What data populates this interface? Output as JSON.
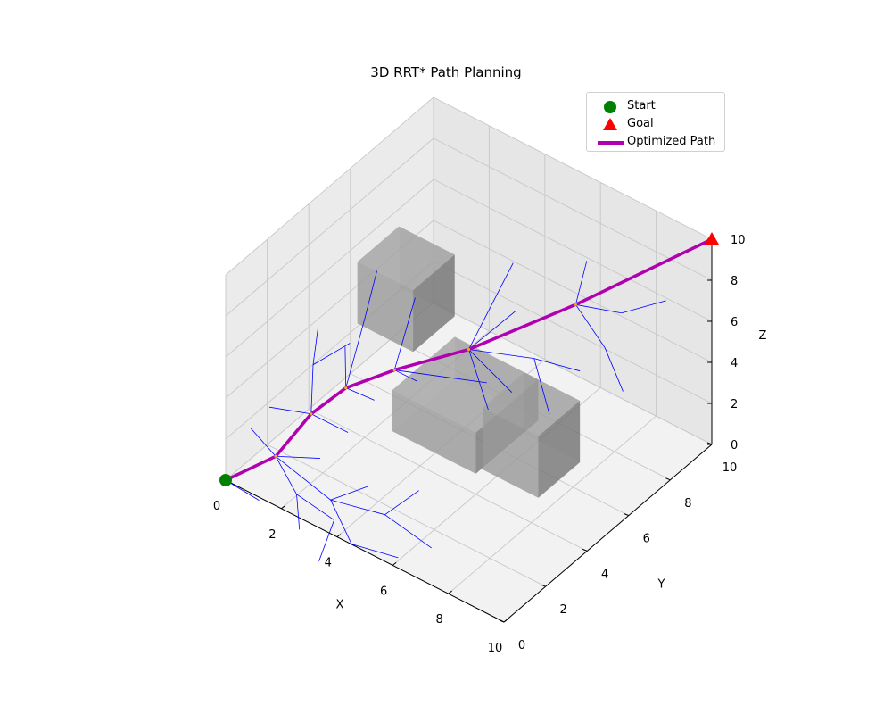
{
  "chart_data": {
    "type": "3d-path",
    "title": "3D RRT* Path Planning",
    "xlabel": "X",
    "ylabel": "Y",
    "zlabel": "Z",
    "xlim": [
      0,
      10
    ],
    "ylim": [
      0,
      10
    ],
    "zlim": [
      0,
      10
    ],
    "xticks": [
      "0",
      "2",
      "4",
      "6",
      "8",
      "10"
    ],
    "yticks": [
      "0",
      "2",
      "4",
      "6",
      "8",
      "10"
    ],
    "zticks": [
      "0",
      "2",
      "4",
      "6",
      "8",
      "10"
    ],
    "grid": true,
    "legend_placement": "top-right",
    "colors": {
      "start": "#008000",
      "goal": "#ff0000",
      "path": "#b000b0",
      "tree": "#0000ff",
      "obstacle": "#808080"
    },
    "legend": [
      {
        "label": "Start",
        "marker": "circle"
      },
      {
        "label": "Goal",
        "marker": "triangle"
      },
      {
        "label": "Optimized Path",
        "marker": "line"
      }
    ],
    "start": [
      0,
      0,
      0
    ],
    "goal": [
      10,
      10,
      10
    ],
    "path": [
      [
        0,
        0,
        0
      ],
      [
        1.2,
        0.8,
        1.3
      ],
      [
        1.8,
        1.7,
        3.0
      ],
      [
        2.6,
        2.3,
        4.3
      ],
      [
        3.6,
        3.3,
        5.0
      ],
      [
        5.0,
        5.0,
        5.5
      ],
      [
        7.2,
        7.2,
        7.3
      ],
      [
        10,
        10,
        10
      ]
    ],
    "obstacles": [
      {
        "min": [
          1,
          5,
          4
        ],
        "max": [
          3,
          7,
          7
        ]
      },
      {
        "min": [
          3,
          4,
          1
        ],
        "max": [
          6,
          7,
          3
        ]
      },
      {
        "min": [
          5.5,
          5,
          0
        ],
        "max": [
          7.5,
          7,
          3
        ]
      }
    ],
    "tree_edges": [
      [
        [
          0,
          0,
          0
        ],
        [
          1.2,
          0.8,
          1.3
        ]
      ],
      [
        [
          0,
          0,
          0
        ],
        [
          1.5,
          -0.4,
          0.4
        ]
      ],
      [
        [
          1.2,
          0.8,
          1.3
        ],
        [
          0.6,
          0.4,
          2.6
        ]
      ],
      [
        [
          1.2,
          0.8,
          1.3
        ],
        [
          2.4,
          0.2,
          0.8
        ]
      ],
      [
        [
          1.2,
          0.8,
          1.3
        ],
        [
          2.2,
          1.6,
          1.2
        ]
      ],
      [
        [
          1.2,
          0.8,
          1.3
        ],
        [
          3.1,
          0.9,
          0.4
        ]
      ],
      [
        [
          1.2,
          0.8,
          1.3
        ],
        [
          1.8,
          1.7,
          3.0
        ]
      ],
      [
        [
          2.4,
          0.2,
          0.8
        ],
        [
          3.6,
          0.4,
          0.2
        ]
      ],
      [
        [
          2.4,
          0.2,
          0.8
        ],
        [
          2.8,
          -0.2,
          -0.3
        ]
      ],
      [
        [
          3.1,
          0.9,
          0.4
        ],
        [
          4.3,
          0.3,
          -0.4
        ]
      ],
      [
        [
          3.1,
          0.9,
          0.4
        ],
        [
          4.6,
          1.5,
          0.2
        ]
      ],
      [
        [
          3.1,
          0.9,
          0.4
        ],
        [
          3.9,
          1.6,
          1.0
        ]
      ],
      [
        [
          4.3,
          0.3,
          -0.4
        ],
        [
          5.6,
          0.8,
          -0.6
        ]
      ],
      [
        [
          4.6,
          1.5,
          0.2
        ],
        [
          6.2,
          1.6,
          -0.4
        ]
      ],
      [
        [
          4.6,
          1.5,
          0.2
        ],
        [
          5.0,
          2.6,
          0.7
        ]
      ],
      [
        [
          3.6,
          0.4,
          0.2
        ],
        [
          3.8,
          -0.6,
          -0.8
        ]
      ],
      [
        [
          1.8,
          1.7,
          3.0
        ],
        [
          1.2,
          2.6,
          4.2
        ]
      ],
      [
        [
          1.8,
          1.7,
          3.0
        ],
        [
          0.9,
          0.9,
          3.4
        ]
      ],
      [
        [
          1.8,
          1.7,
          3.0
        ],
        [
          2.6,
          2.3,
          4.3
        ]
      ],
      [
        [
          1.8,
          1.7,
          3.0
        ],
        [
          2.9,
          2.0,
          2.6
        ]
      ],
      [
        [
          1.2,
          2.6,
          4.2
        ],
        [
          1.0,
          3.1,
          5.4
        ]
      ],
      [
        [
          1.2,
          2.6,
          4.2
        ],
        [
          2.0,
          3.3,
          5.2
        ]
      ],
      [
        [
          2.6,
          2.3,
          4.3
        ],
        [
          2.3,
          3.6,
          6.3
        ]
      ],
      [
        [
          2.6,
          2.3,
          4.3
        ],
        [
          2.2,
          2.8,
          5.6
        ]
      ],
      [
        [
          2.6,
          2.3,
          4.3
        ],
        [
          3.6,
          3.3,
          5.0
        ]
      ],
      [
        [
          2.6,
          2.3,
          4.3
        ],
        [
          3.4,
          2.6,
          4.0
        ]
      ],
      [
        [
          2.3,
          3.6,
          6.3
        ],
        [
          2.0,
          4.6,
          7.6
        ]
      ],
      [
        [
          3.6,
          3.3,
          5.0
        ],
        [
          3.3,
          4.7,
          7.1
        ]
      ],
      [
        [
          3.6,
          3.3,
          5.0
        ],
        [
          4.2,
          3.6,
          4.6
        ]
      ],
      [
        [
          3.6,
          3.3,
          5.0
        ],
        [
          5.0,
          5.0,
          5.5
        ]
      ],
      [
        [
          3.6,
          3.3,
          5.0
        ],
        [
          5.8,
          4.8,
          4.6
        ]
      ],
      [
        [
          5.0,
          5.0,
          5.5
        ],
        [
          5.4,
          6.6,
          8.6
        ]
      ],
      [
        [
          5.0,
          5.0,
          5.5
        ],
        [
          5.8,
          6.2,
          6.9
        ]
      ],
      [
        [
          5.0,
          5.0,
          5.5
        ],
        [
          6.0,
          4.6,
          3.6
        ]
      ],
      [
        [
          5.0,
          5.0,
          5.5
        ],
        [
          6.6,
          6.0,
          5.3
        ]
      ],
      [
        [
          5.0,
          5.0,
          5.5
        ],
        [
          7.2,
          7.2,
          7.3
        ]
      ],
      [
        [
          5.0,
          5.0,
          5.5
        ],
        [
          6.4,
          5.2,
          4.2
        ]
      ],
      [
        [
          6.6,
          6.0,
          5.3
        ],
        [
          7.6,
          5.4,
          3.8
        ]
      ],
      [
        [
          6.6,
          6.0,
          5.3
        ],
        [
          7.8,
          6.6,
          5.0
        ]
      ],
      [
        [
          7.2,
          7.2,
          7.3
        ],
        [
          7.0,
          8.0,
          8.6
        ]
      ],
      [
        [
          7.2,
          7.2,
          7.3
        ],
        [
          8.4,
          7.8,
          7.2
        ]
      ],
      [
        [
          7.2,
          7.2,
          7.3
        ],
        [
          8.4,
          7.0,
          6.2
        ]
      ],
      [
        [
          7.2,
          7.2,
          7.3
        ],
        [
          10,
          10,
          10
        ]
      ],
      [
        [
          8.4,
          7.8,
          7.2
        ],
        [
          9.4,
          8.6,
          7.8
        ]
      ],
      [
        [
          8.4,
          7.0,
          6.2
        ],
        [
          9.2,
          6.8,
          4.8
        ]
      ]
    ]
  }
}
